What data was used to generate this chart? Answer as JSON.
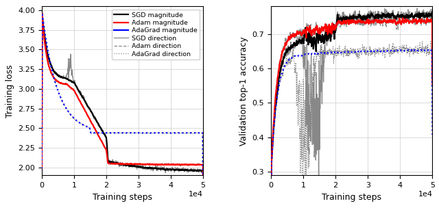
{
  "left_ylabel": "Training loss",
  "right_ylabel": "Validation top-1 accuracy",
  "xlabel": "Training steps",
  "xlim": [
    0,
    50000
  ],
  "xticks": [
    0,
    10000,
    20000,
    30000,
    40000,
    50000
  ],
  "left_ylim": [
    1.9,
    4.05
  ],
  "left_yticks": [
    2.0,
    2.25,
    2.5,
    2.75,
    3.0,
    3.25,
    3.5,
    3.75,
    4.0
  ],
  "right_ylim": [
    0.29,
    0.78
  ],
  "right_yticks": [
    0.3,
    0.4,
    0.5,
    0.6,
    0.7
  ],
  "colors": {
    "sgd": "#000000",
    "adam": "#ff0000",
    "adagrad": "#0000ff",
    "direction": "#888888"
  }
}
